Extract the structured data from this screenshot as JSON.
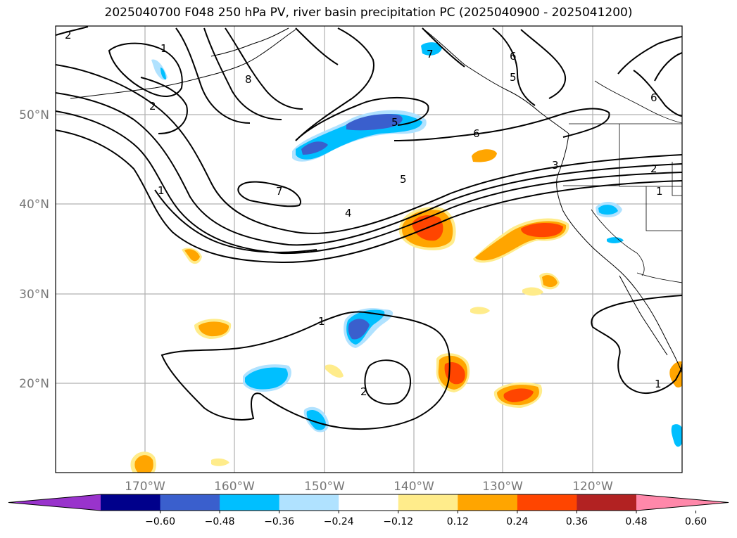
{
  "title": "2025040700 F048 250 hPa PV, river basin precipitation PC (2025040900 - 2025041200)",
  "lat_labels": [
    "50°N",
    "40°N",
    "30°N",
    "20°N"
  ],
  "lon_labels": [
    "170°W",
    "160°W",
    "150°W",
    "140°W",
    "130°W",
    "120°W"
  ],
  "colorbar": {
    "colors": [
      "#9933cc",
      "#00008b",
      "#3a5fcd",
      "#00bfff",
      "#b0e2ff",
      "#ffffff",
      "#ffec8b",
      "#ffa500",
      "#ff4500",
      "#b22222",
      "#ff88aa"
    ],
    "tick_labels": [
      "−0.60",
      "−0.48",
      "−0.36",
      "−0.24",
      "−0.12",
      "0.12",
      "0.24",
      "0.36",
      "0.48",
      "0.60"
    ]
  },
  "contour_labels": [
    "2",
    "1",
    "2",
    "8",
    "7",
    "1",
    "6",
    "6",
    "5",
    "5",
    "6",
    "5",
    "4",
    "3",
    "2",
    "1",
    "2",
    "1",
    "7",
    "1"
  ]
}
